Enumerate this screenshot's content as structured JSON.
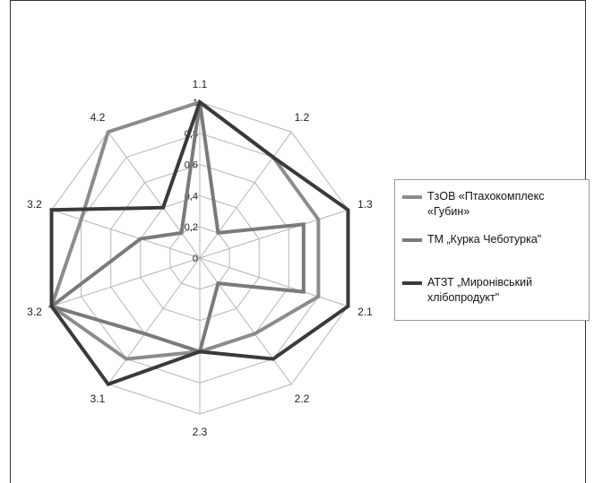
{
  "chart_data": {
    "type": "radar",
    "axes": [
      "1.1",
      "1.2",
      "1.3",
      "2.1",
      "2.2",
      "2.3",
      "3.1",
      "3.2",
      "3.2",
      "4.2"
    ],
    "ticks": [
      "0",
      "0,2",
      "0,4",
      "0,6",
      "0,8",
      "1"
    ],
    "rlim": [
      0,
      1
    ],
    "legend_position": "right",
    "series": [
      {
        "name": "ТзОВ «Птахокомплекс «Губин»",
        "color": "#8c8c8c",
        "values": [
          1,
          0.8,
          0.8,
          0.8,
          0.6,
          0.6,
          0.8,
          1,
          0.8,
          1
        ]
      },
      {
        "name": "ТМ „Курка Чеботурка\"",
        "color": "#7a7a7a",
        "values": [
          1,
          0.2,
          0.7,
          0.7,
          0.2,
          0.6,
          0.6,
          1,
          0.4,
          0.2
        ]
      },
      {
        "name": "АТЗТ „Миронівський хлібопродукт\"",
        "color": "#3a3a3a",
        "values": [
          1,
          0.8,
          1,
          1,
          0.8,
          0.6,
          1,
          1,
          1,
          0.4
        ]
      }
    ]
  },
  "legend": {
    "item1": "ТзОВ «Птахокомплекс «Губин»",
    "item2": "ТМ „Курка Чеботурка\"",
    "item3": "АТЗТ „Миронівський хлібопродукт\""
  }
}
